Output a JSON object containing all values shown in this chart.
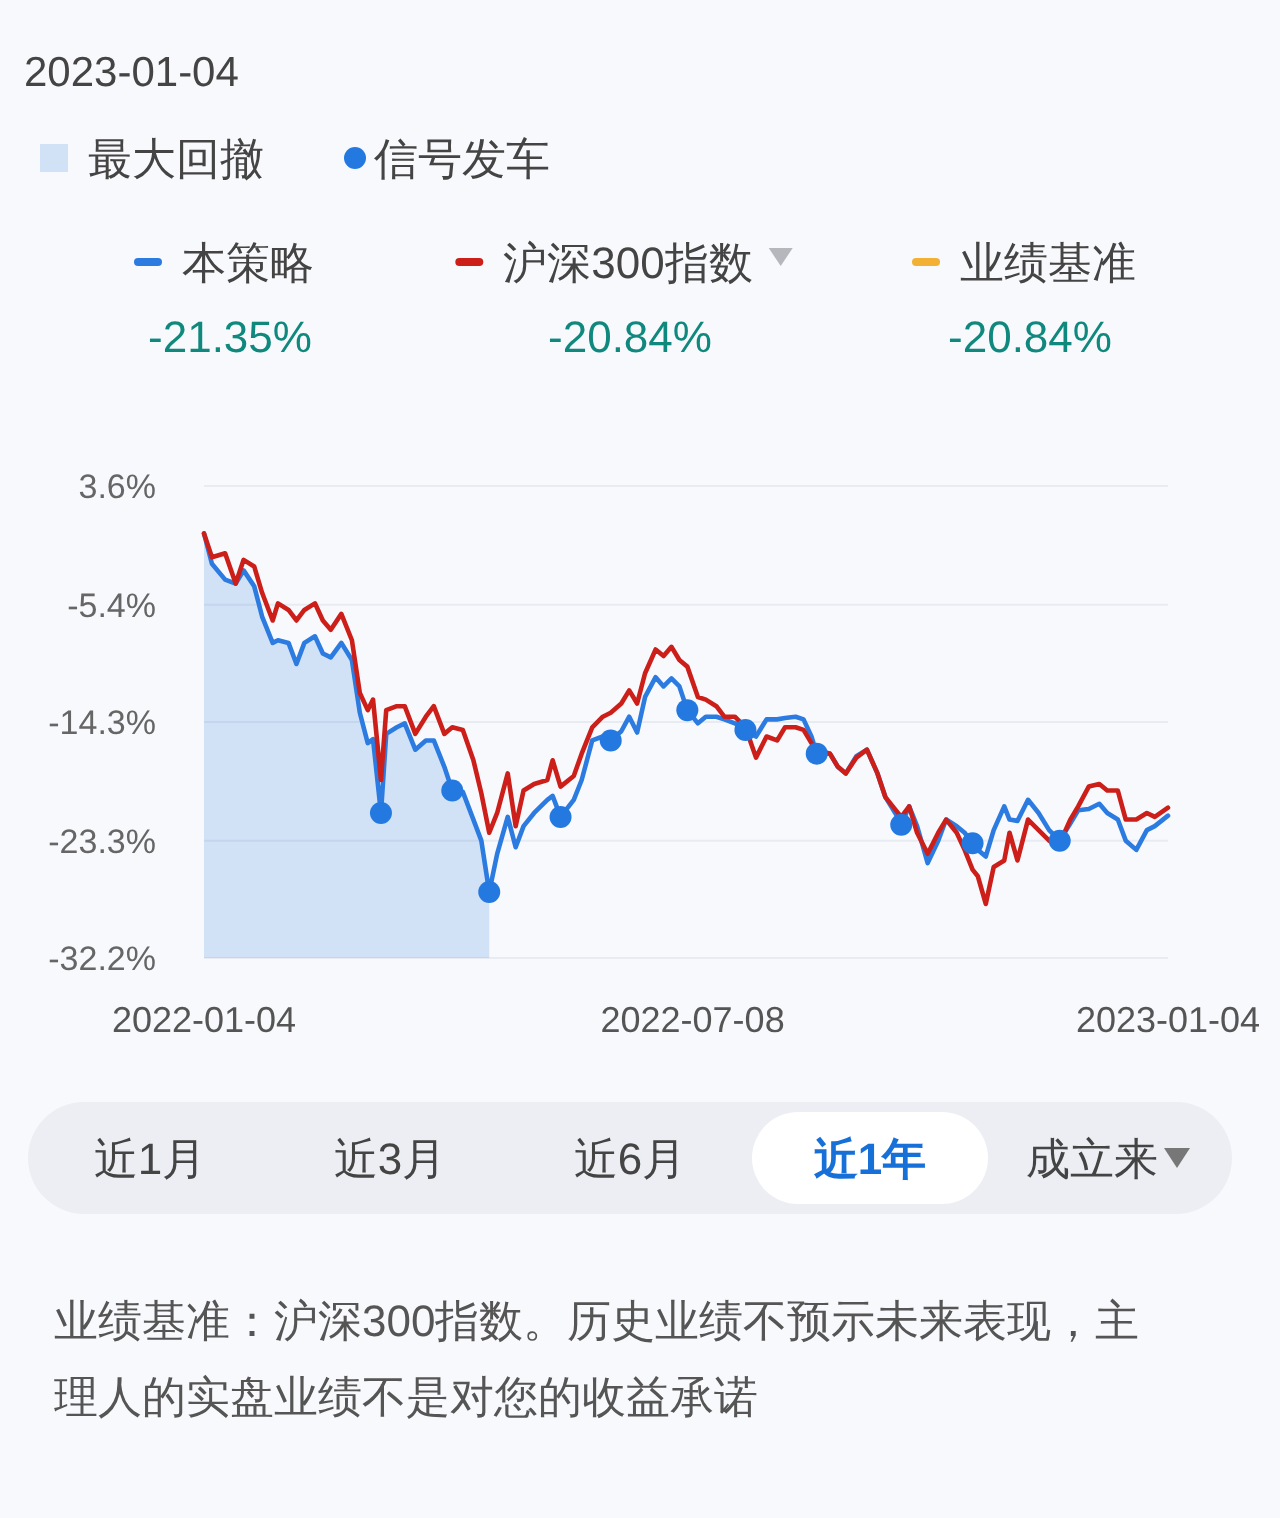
{
  "chart_data": {
    "type": "line",
    "annotations": [
      "2023-01-04",
      "最大回撤",
      "-21.35%",
      "-20.84%",
      "-20.84%",
      "近1月",
      "近3月",
      "近6月",
      "近1年",
      "成立来",
      "业绩基准：沪深300指数。历史业绩不预示未来表现，主理人的实盘业绩不是对您的收益承诺"
    ],
    "x": [
      "2022-01-04",
      "2022-01-07",
      "2022-01-12",
      "2022-01-16",
      "2022-01-19",
      "2022-01-23",
      "2022-01-26",
      "2022-01-30",
      "2022-02-01",
      "2022-02-05",
      "2022-02-08",
      "2022-02-11",
      "2022-02-15",
      "2022-02-18",
      "2022-02-21",
      "2022-02-25",
      "2022-03-01",
      "2022-03-04",
      "2022-03-07",
      "2022-03-09",
      "2022-03-12",
      "2022-03-14",
      "2022-03-18",
      "2022-03-21",
      "2022-03-25",
      "2022-03-29",
      "2022-04-01",
      "2022-04-05",
      "2022-04-08",
      "2022-04-12",
      "2022-04-16",
      "2022-04-19",
      "2022-04-22",
      "2022-04-25",
      "2022-04-29",
      "2022-05-02",
      "2022-05-05",
      "2022-05-09",
      "2022-05-14",
      "2022-05-16",
      "2022-05-19",
      "2022-05-24",
      "2022-05-27",
      "2022-05-31",
      "2022-06-04",
      "2022-06-07",
      "2022-06-11",
      "2022-06-14",
      "2022-06-17",
      "2022-06-20",
      "2022-06-24",
      "2022-06-27",
      "2022-06-30",
      "2022-07-03",
      "2022-07-06",
      "2022-07-10",
      "2022-07-13",
      "2022-07-17",
      "2022-07-20",
      "2022-07-24",
      "2022-07-28",
      "2022-08-01",
      "2022-08-05",
      "2022-08-09",
      "2022-08-12",
      "2022-08-16",
      "2022-08-19",
      "2022-08-22",
      "2022-08-24",
      "2022-08-29",
      "2022-09-01",
      "2022-09-04",
      "2022-09-08",
      "2022-09-12",
      "2022-09-16",
      "2022-09-19",
      "2022-09-23",
      "2022-09-25",
      "2022-09-28",
      "2022-10-01",
      "2022-10-05",
      "2022-10-09",
      "2022-10-12",
      "2022-10-16",
      "2022-10-19",
      "2022-10-22",
      "2022-10-24",
      "2022-10-27",
      "2022-10-30",
      "2022-11-03",
      "2022-11-05",
      "2022-11-08",
      "2022-11-12",
      "2022-11-16",
      "2022-11-20",
      "2022-11-24",
      "2022-11-28",
      "2022-12-01",
      "2022-12-05",
      "2022-12-09",
      "2022-12-12",
      "2022-12-16",
      "2022-12-19",
      "2022-12-23",
      "2022-12-27",
      "2022-12-30",
      "2023-01-04"
    ],
    "xlim": [
      "2022-01-04",
      "2023-01-04"
    ],
    "xticks": [
      "2022-01-04",
      "2022-07-08",
      "2023-01-04"
    ],
    "ylim": [
      -32.2,
      3.6
    ],
    "yticks": [
      {
        "value": 3.6,
        "label": "3.6%"
      },
      {
        "value": -5.4,
        "label": "-5.4%"
      },
      {
        "value": -14.3,
        "label": "-14.3%"
      },
      {
        "value": -23.3,
        "label": "-23.3%"
      },
      {
        "value": -32.2,
        "label": "-32.2%"
      }
    ],
    "grid": "y",
    "legend": "top",
    "series": [
      {
        "name": "本策略",
        "color": "#2b7be0",
        "values": [
          0,
          -2.3,
          -3.5,
          -3.8,
          -2.8,
          -4.0,
          -6.3,
          -8.3,
          -8.1,
          -8.3,
          -9.9,
          -8.3,
          -7.8,
          -9.1,
          -9.4,
          -8.3,
          -9.6,
          -13.6,
          -15.9,
          -15.6,
          -21.2,
          -15.2,
          -14.7,
          -14.4,
          -16.4,
          -15.7,
          -15.7,
          -17.7,
          -19.5,
          -19.6,
          -21.7,
          -23.3,
          -27.2,
          -24.3,
          -21.5,
          -23.8,
          -22.2,
          -21.2,
          -20.2,
          -19.9,
          -21.5,
          -20.2,
          -18.7,
          -15.7,
          -15.4,
          -15.7,
          -15.0,
          -13.9,
          -15.1,
          -12.4,
          -10.9,
          -11.6,
          -11.0,
          -11.6,
          -13.4,
          -14.4,
          -13.9,
          -13.9,
          -14.1,
          -14.4,
          -14.9,
          -15.4,
          -14.1,
          -14.1,
          -14.0,
          -13.9,
          -14.1,
          -15.4,
          -16.7,
          -16.7,
          -17.7,
          -18.2,
          -16.9,
          -16.4,
          -18.2,
          -20.0,
          -21.3,
          -22.1,
          -20.7,
          -22.2,
          -25.0,
          -23.3,
          -21.7,
          -22.2,
          -22.7,
          -23.5,
          -24.0,
          -24.5,
          -22.5,
          -20.7,
          -21.7,
          -21.8,
          -20.2,
          -21.2,
          -22.5,
          -23.3,
          -22.0,
          -21.0,
          -20.9,
          -20.5,
          -21.2,
          -21.7,
          -23.3,
          -24.0,
          -22.5,
          -22.2,
          -21.4
        ],
        "lower": [
          -32.2,
          -32.2,
          -32.2,
          -32.2,
          -32.2,
          -32.2,
          -32.2,
          -32.2,
          -32.2,
          -32.2,
          -32.2,
          -32.2,
          -32.2,
          -32.2,
          -32.2,
          -32.2,
          -32.2,
          -32.2,
          -32.2,
          -32.2,
          -32.2,
          -32.2,
          -32.2,
          -32.2,
          -32.2,
          -32.2,
          -32.2,
          -32.2,
          -32.2,
          -32.2,
          -32.2,
          -32.2,
          -32.2,
          null,
          null,
          null,
          null,
          null,
          null,
          null,
          null,
          null,
          null,
          null,
          null,
          null,
          null,
          null,
          null,
          null,
          null,
          null,
          null,
          null,
          null,
          null,
          null,
          null,
          null,
          null,
          null,
          null,
          null,
          null,
          null,
          null,
          null,
          null,
          null,
          null,
          null,
          null,
          null,
          null,
          null,
          null,
          null,
          null,
          null,
          null,
          null,
          null,
          null,
          null,
          null,
          null,
          null,
          null,
          null,
          null,
          null,
          null,
          null,
          null,
          null,
          null,
          null,
          null,
          null,
          null,
          null,
          null,
          null,
          null,
          null,
          null,
          null
        ],
        "upper": [
          0,
          -2.3,
          -3.5,
          -3.8,
          -2.8,
          -4.0,
          -6.3,
          -8.3,
          -8.1,
          -8.3,
          -9.9,
          -8.3,
          -7.8,
          -9.1,
          -9.4,
          -8.3,
          -9.6,
          -13.6,
          -15.9,
          -15.6,
          -21.2,
          -15.2,
          -14.7,
          -14.4,
          -16.4,
          -15.7,
          -15.7,
          -17.7,
          -19.5,
          -19.6,
          -21.7,
          -23.3,
          -27.2,
          null,
          null,
          null,
          null,
          null,
          null,
          null,
          null,
          null,
          null,
          null,
          null,
          null,
          null,
          null,
          null,
          null,
          null,
          null,
          null,
          null,
          null,
          null,
          null,
          null,
          null,
          null,
          null,
          null,
          null,
          null,
          null,
          null,
          null,
          null,
          null,
          null,
          null,
          null,
          null,
          null,
          null,
          null,
          null,
          null,
          null,
          null,
          null,
          null,
          null,
          null,
          null,
          null,
          null,
          null,
          null,
          null,
          null,
          null,
          null,
          null,
          null,
          null,
          null,
          null,
          null,
          null,
          null,
          null,
          null,
          null,
          null,
          null,
          null
        ]
      },
      {
        "name": "沪深300指数",
        "color": "#cc1f1a",
        "values": [
          0,
          -1.8,
          -1.5,
          -3.8,
          -2.0,
          -2.5,
          -4.5,
          -6.6,
          -5.3,
          -5.8,
          -6.6,
          -5.8,
          -5.3,
          -6.6,
          -7.3,
          -6.1,
          -8.1,
          -12.1,
          -13.4,
          -12.6,
          -18.7,
          -13.4,
          -13.1,
          -13.1,
          -15.2,
          -13.9,
          -13.1,
          -15.2,
          -14.7,
          -14.9,
          -17.2,
          -19.7,
          -22.7,
          -21.2,
          -18.2,
          -22.2,
          -19.5,
          -19.0,
          -18.7,
          -17.2,
          -19.2,
          -18.4,
          -16.7,
          -14.7,
          -13.9,
          -13.6,
          -12.9,
          -11.9,
          -12.9,
          -10.6,
          -8.8,
          -9.3,
          -8.6,
          -9.6,
          -10.1,
          -12.4,
          -12.6,
          -13.1,
          -13.9,
          -13.9,
          -14.7,
          -17.0,
          -15.4,
          -15.7,
          -14.7,
          -14.7,
          -14.9,
          -15.9,
          -16.4,
          -16.7,
          -17.7,
          -18.2,
          -17.0,
          -16.4,
          -18.2,
          -20.0,
          -21.0,
          -21.5,
          -20.7,
          -22.7,
          -24.3,
          -22.7,
          -21.7,
          -22.7,
          -24.0,
          -25.5,
          -26.0,
          -28.1,
          -25.3,
          -24.8,
          -22.7,
          -24.8,
          -21.7,
          -22.5,
          -23.3,
          -23.5,
          -21.7,
          -20.7,
          -19.2,
          -19.0,
          -19.5,
          -19.5,
          -21.7,
          -21.7,
          -21.2,
          -21.5,
          -20.8
        ]
      },
      {
        "name": "业绩基准",
        "color": "#f2b134",
        "values": [
          null,
          null,
          null,
          null,
          null,
          null,
          null,
          null,
          null,
          null,
          null,
          null,
          null,
          null,
          null,
          null,
          null,
          null,
          null,
          null,
          null,
          null,
          null,
          null,
          null,
          null,
          null,
          null,
          null,
          null,
          null,
          null,
          null,
          null,
          null,
          null,
          null,
          null,
          null,
          null,
          null,
          null,
          null,
          null,
          null,
          null,
          null,
          null,
          null,
          null,
          null,
          null,
          null,
          null,
          null,
          null,
          null,
          null,
          null,
          null,
          null,
          null,
          null,
          null,
          null,
          null,
          null,
          null,
          null,
          null,
          null,
          null,
          null,
          null,
          null,
          null,
          null,
          null,
          null,
          null,
          null,
          null,
          null,
          null,
          null,
          null,
          null,
          null,
          null,
          null,
          null,
          null,
          null,
          null,
          null,
          null,
          null,
          null,
          null,
          null,
          null,
          null,
          null,
          null,
          null,
          null,
          null
        ]
      },
      {
        "name": "信号发车",
        "type": "scatter",
        "color": "#2479e0",
        "x": [
          "2022-03-12",
          "2022-04-08",
          "2022-04-22",
          "2022-05-19",
          "2022-06-07",
          "2022-07-06",
          "2022-07-28",
          "2022-08-24",
          "2022-09-25",
          "2022-10-22",
          "2022-11-24"
        ],
        "values": [
          -21.2,
          -19.5,
          -27.2,
          -21.5,
          -15.7,
          -13.4,
          -14.9,
          -16.7,
          -22.1,
          -23.5,
          -23.3
        ]
      }
    ]
  }
}
